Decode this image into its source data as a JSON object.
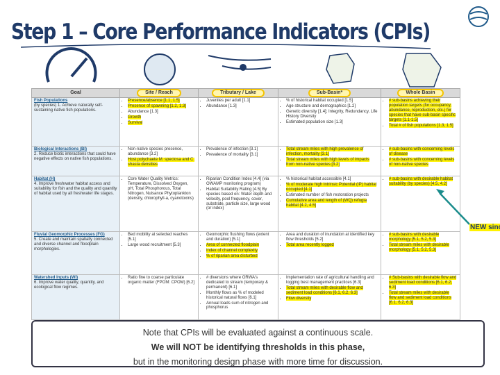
{
  "title": "Step 1 – Core Performance Indicators (CPIs)",
  "table": {
    "headers": [
      "Goal",
      "Site / Reach",
      "Tributary / Lake",
      "Sub-Basin*",
      "Whole Basin"
    ],
    "rows": [
      {
        "goal": {
          "name": "Fish Populations",
          "text": "(by species) 1. Achieve naturally self-sustaining native fish populations."
        },
        "cells": [
          [
            {
              "text": "Presence/absence [1.1, 1.5]",
              "highlight": true
            },
            {
              "text": "Presence of spawning [1.2, 1.3]",
              "highlight": true
            },
            {
              "text": "Abundance [1.3]"
            },
            {
              "text": "Growth",
              "highlight": true
            },
            {
              "text": "Survival",
              "highlight": true
            }
          ],
          [
            {
              "text": "Juveniles per adult [1.1]"
            },
            {
              "text": "Abundance [1.3]"
            }
          ],
          [
            {
              "text": "% of historical habitat occupied [1.5]"
            },
            {
              "text": "Age structure and demographics [1.2]"
            },
            {
              "text": "Genetic diversity [1.4]; Integrity, Redundancy, Life History Diversity"
            },
            {
              "text": "Estimated population size [1.3]"
            }
          ],
          [
            {
              "text": "# sub-basins achieving their population targets (for occupancy, abundance, reproduction, etc.) for species that have sub-basin specific targets [1.1-1.5]",
              "highlight": true
            },
            {
              "text": "Total # of fish populations [1.3, 1.5]",
              "highlight": true
            }
          ]
        ]
      },
      {
        "goal": {
          "name": "Biological Interactions (BI)",
          "text": "2. Reduce biotic interactions that could have negative effects on native fish populations."
        },
        "cells": [
          [
            {
              "text": "Non-native species presence, abundance [3.2]"
            },
            {
              "text": "Host polychaete M. speciosa and C. shasta densities",
              "highlight": true
            }
          ],
          [
            {
              "text": "Prevalence of infection [3.1]"
            },
            {
              "text": "Prevalence of mortality [3.1]"
            }
          ],
          [
            {
              "text": "Total stream miles with high prevalence of infection, mortality [3.1]",
              "highlight": true
            },
            {
              "text": "Total stream miles with high levels of impacts from non-native species [3.2]",
              "highlight": true
            }
          ],
          [
            {
              "text": "# sub-basins with concerning levels of disease",
              "highlight": true
            },
            {
              "text": "# sub-basins with concerning levels of non-native species",
              "highlight": true
            }
          ]
        ]
      },
      {
        "goal": {
          "name": "Habitat (H)",
          "text": "4. Improve freshwater habitat access and suitability for fish and the quality and quantity of habitat used by all freshwater life stages."
        },
        "cells": [
          [
            {
              "text": "Core Water Quality Metrics: Temperature, Dissolved Oxygen, pH, Total Phosphorous, Total Nitrogen, Nuisance Phytoplankton (density, chlorophyll-a, cyanotoxins)"
            }
          ],
          [
            {
              "text": "Riparian Condition Index [4.4] (via OWAMP monitoring program)"
            },
            {
              "text": "Habitat Suitability Rating [4.5] By species based on: Water depth and velocity, pool frequency, cover, substrate, particle size, large wood (or index)"
            }
          ],
          [
            {
              "text": "% historical habitat accessible [4.1]"
            },
            {
              "text": "% of moderate high Intrinsic Potential (IP) habitat occupied [4.1]",
              "highlight": true
            },
            {
              "text": "Estimated number of fish restoration projects"
            },
            {
              "text": "Cumulative area and length of (WQ) refugia habitat [4.2, 4.5]",
              "highlight": true
            }
          ],
          [
            {
              "text": "# sub-basins with desirable habitat suitability (by species) [4.5, 4.2]",
              "highlight": true
            }
          ]
        ]
      },
      {
        "goal": {
          "name": "Fluvial Geomorphic Processes (FG)",
          "text": "5. Create and maintain spatially connected and diverse channel and floodplain morphologies."
        },
        "cells": [
          [
            {
              "text": "Bed mobility at selected reaches [5.1]"
            },
            {
              "text": "Large wood recruitment [5.3]"
            }
          ],
          [
            {
              "text": "Geomorphic flushing flows (extent and duration) [5.1]"
            },
            {
              "text": "Area of connected floodplain",
              "highlight": true
            },
            {
              "text": "Index of channel complexity",
              "highlight": true
            },
            {
              "text": "% of riparian area disturbed",
              "highlight": true
            }
          ],
          [
            {
              "text": "Area and duration of inundation at identified key flow thresholds [5.2]"
            },
            {
              "text": "Total area recently logged",
              "highlight": true
            }
          ],
          [
            {
              "text": "# sub-basins with desirable morphology [5.1, 5.2, 5.3]",
              "highlight": true
            },
            {
              "text": "Total stream miles with desirable morphology [5.1, 5.2, 5.3]",
              "highlight": true
            }
          ]
        ]
      },
      {
        "goal": {
          "name": "Watershed Inputs (WI)",
          "text": "6. Improve water quality, quantity, and ecological flow regimes."
        },
        "cells": [
          [
            {
              "text": "Ratio fine to coarse particulate organic matter (FPOM: CPOM) [6.2]"
            }
          ],
          [
            {
              "text": "# diversions where ORWA's dedicated to stream (temporary & permanent) [6.1]"
            },
            {
              "text": "Monthly flows as % of modeled historical natural flows [6.1]"
            },
            {
              "text": "Annual loads sum of nitrogen and phosphorus"
            }
          ],
          [
            {
              "text": "Implementation rate of agricultural handling and logging best management practices [6.3]"
            },
            {
              "text": "Total stream miles with desirable flow and sediment load conditions [6.1, 6.2, 6.3]",
              "highlight": true
            },
            {
              "text": "Flow diversity",
              "highlight": true
            }
          ],
          [
            {
              "text": "# Sub-basins with desirable flow and sediment load conditions [6.1, 6.2, 6.3]",
              "highlight": true
            },
            {
              "text": "Total stream miles with desirable flow and sediment load conditions [6.1, 6.2, 6.3]",
              "highlight": true
            }
          ]
        ]
      }
    ]
  },
  "callout": "NEW since",
  "note": [
    "Note that CPIs will be evaluated against a continuous scale.",
    "We will NOT be identifying thresholds in this phase,",
    "but in the monitoring design phase with more time for discussion."
  ]
}
